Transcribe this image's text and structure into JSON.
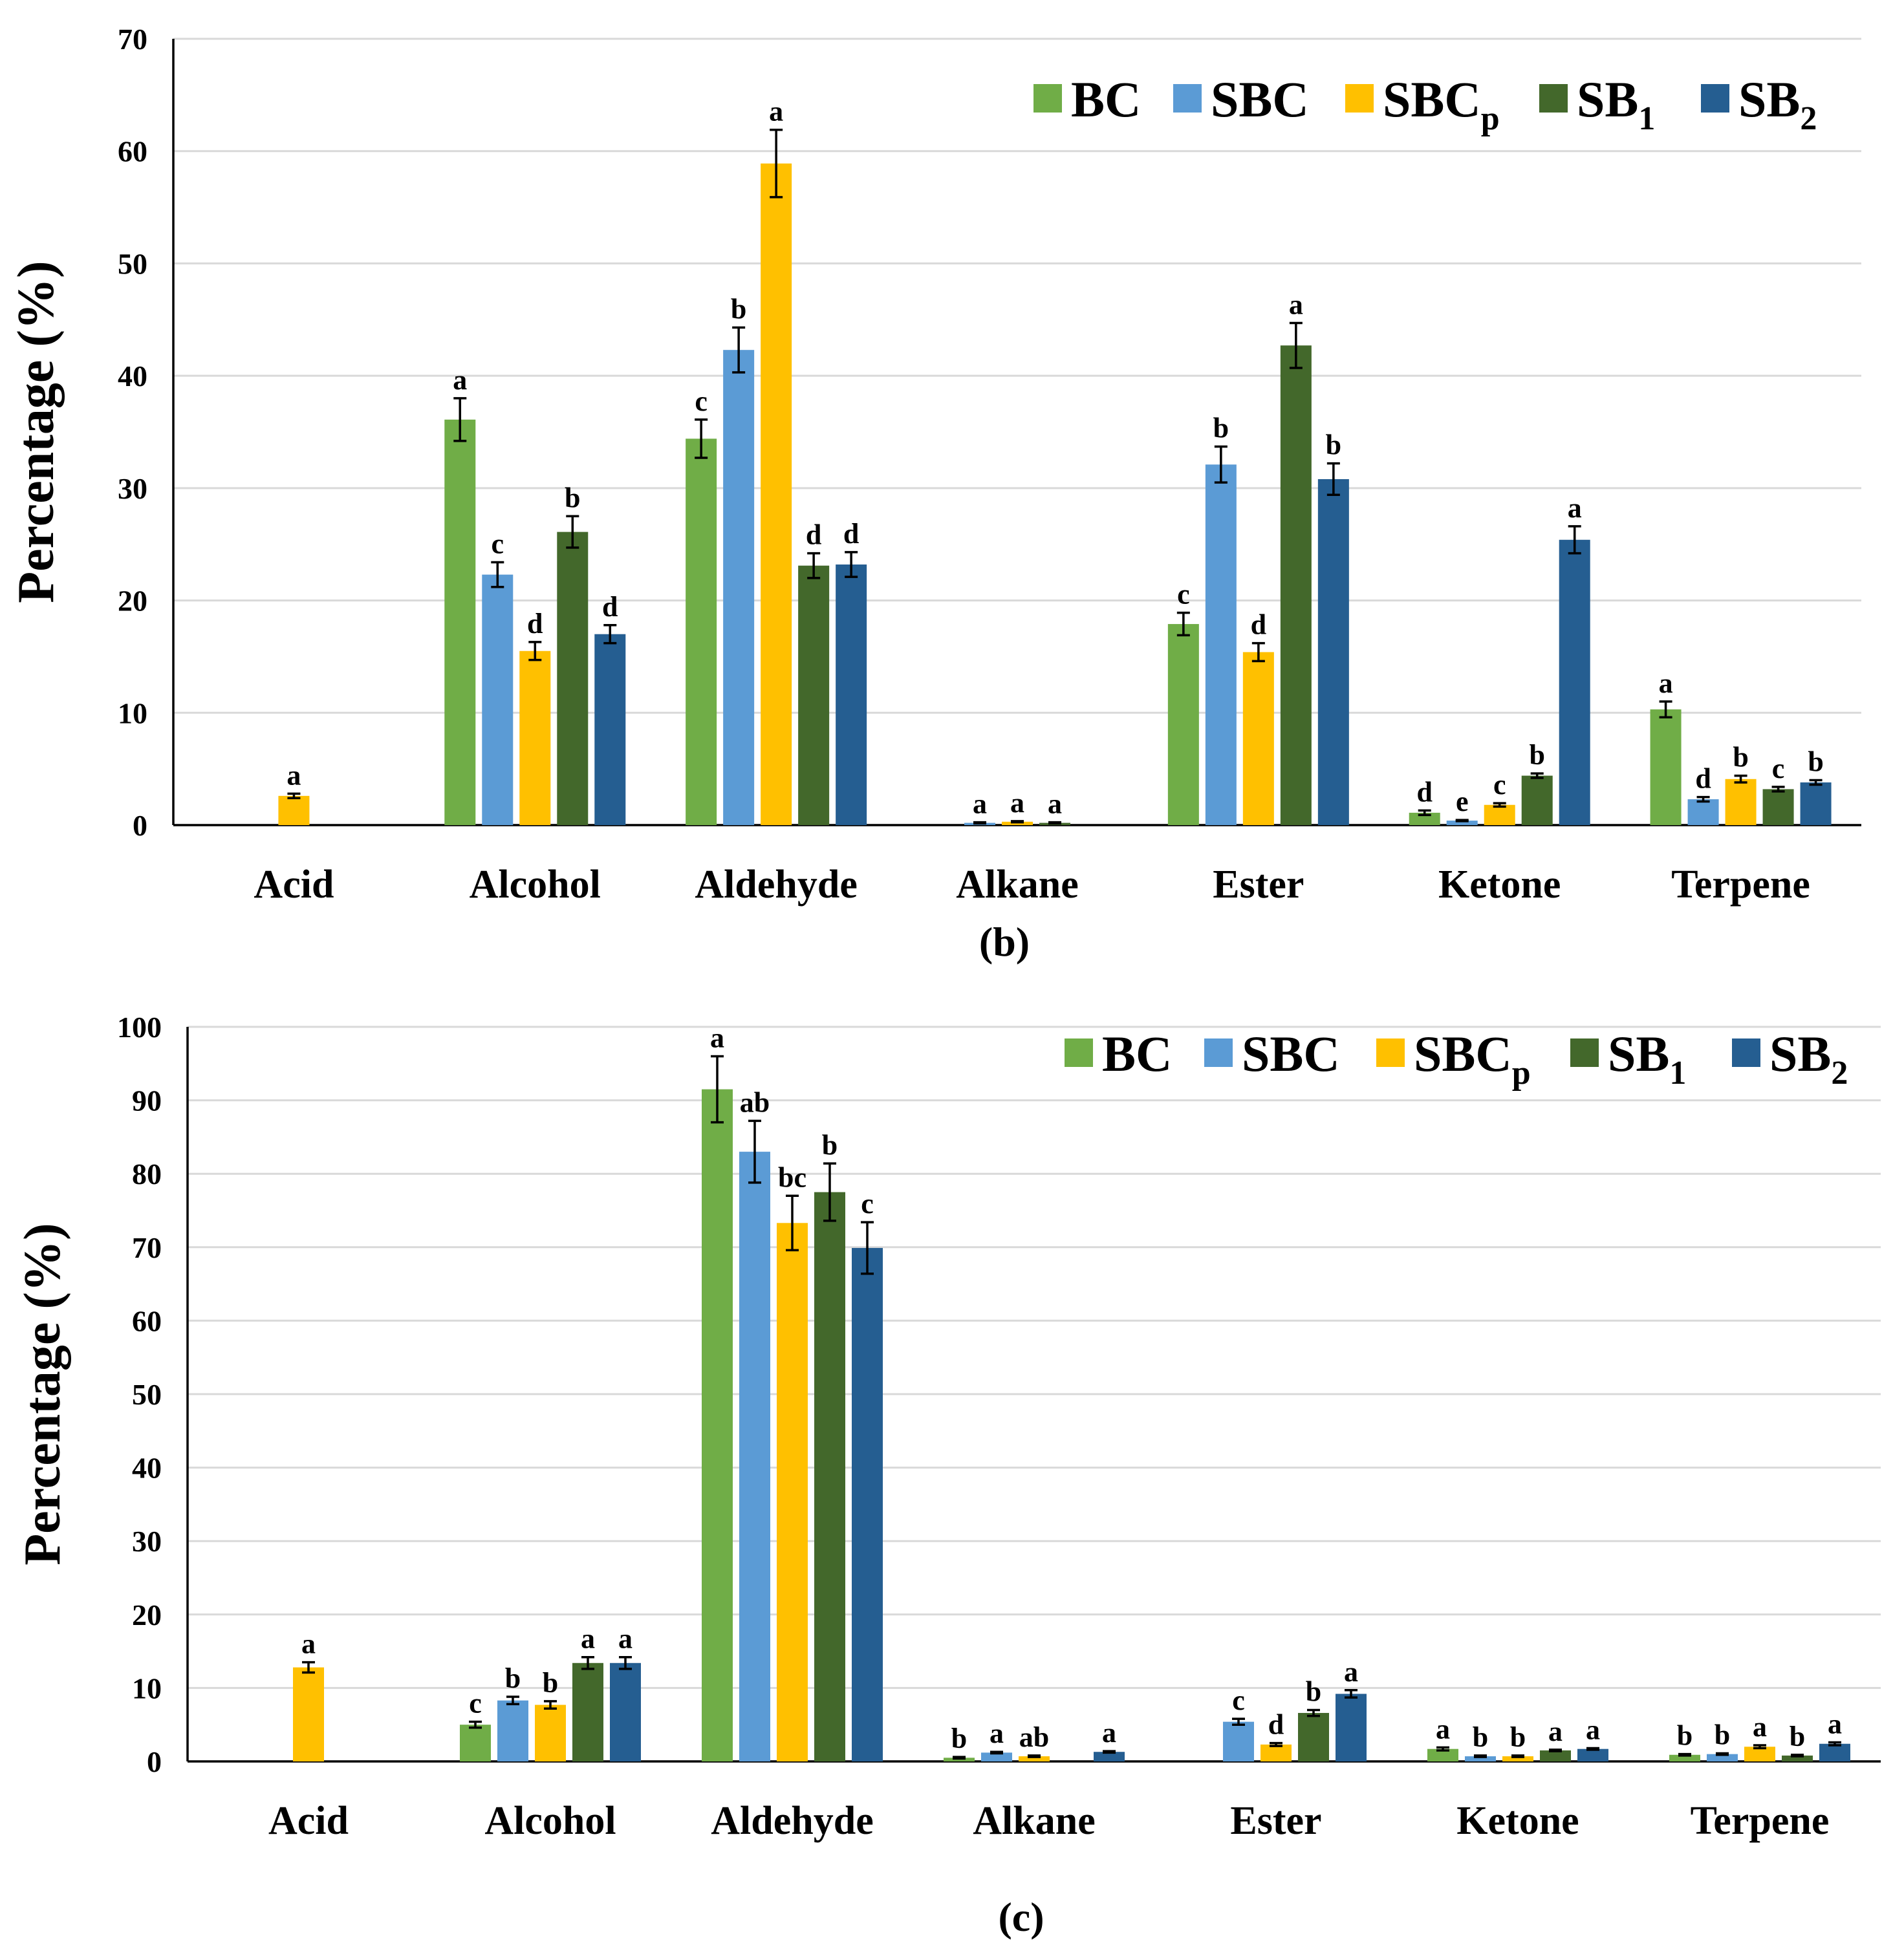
{
  "chart_data": [
    {
      "type": "bar",
      "panel": "b",
      "caption": "(b)",
      "ylabel": "Percentage (%)",
      "ylim": [
        0,
        70
      ],
      "yticks": [
        0,
        10,
        20,
        30,
        40,
        50,
        60,
        70
      ],
      "grid": true,
      "legend_position": "top-right",
      "categories": [
        "Acid",
        "Alcohol",
        "Aldehyde",
        "Alkane",
        "Ester",
        "Ketone",
        "Terpene"
      ],
      "series": [
        {
          "name": "BC",
          "base": "BC",
          "sub": "",
          "color": "#70ad47",
          "values": [
            null,
            36.1,
            34.4,
            null,
            17.9,
            1.1,
            10.3
          ],
          "errors": [
            null,
            1.9,
            1.7,
            null,
            1.0,
            0.2,
            0.7
          ],
          "labels": [
            "",
            "a",
            "c",
            "",
            "c",
            "d",
            "a"
          ]
        },
        {
          "name": "SBC",
          "base": "SBC",
          "sub": "",
          "color": "#5b9bd5",
          "values": [
            null,
            22.3,
            42.3,
            0.2,
            32.1,
            0.4,
            2.3
          ],
          "errors": [
            null,
            1.1,
            2.0,
            0.05,
            1.6,
            0.05,
            0.2
          ],
          "labels": [
            "",
            "c",
            "b",
            "a",
            "b",
            "e",
            "d"
          ]
        },
        {
          "name": "SBCp",
          "base": "SBC",
          "sub": "p",
          "color": "#ffc000",
          "values": [
            2.6,
            15.5,
            58.9,
            0.3,
            15.4,
            1.8,
            4.1
          ],
          "errors": [
            0.2,
            0.8,
            3.0,
            0.05,
            0.8,
            0.15,
            0.3
          ],
          "labels": [
            "a",
            "d",
            "a",
            "a",
            "d",
            "c",
            "b"
          ]
        },
        {
          "name": "SB1",
          "base": "SB",
          "sub": "1",
          "color": "#43682b",
          "values": [
            null,
            26.1,
            23.1,
            0.2,
            42.7,
            4.4,
            3.2
          ],
          "errors": [
            null,
            1.4,
            1.1,
            0.05,
            2.0,
            0.2,
            0.2
          ],
          "labels": [
            "",
            "b",
            "d",
            "a",
            "a",
            "b",
            "c"
          ]
        },
        {
          "name": "SB2",
          "base": "SB",
          "sub": "2",
          "color": "#255e91",
          "values": [
            null,
            17.0,
            23.2,
            null,
            30.8,
            25.4,
            3.8
          ],
          "errors": [
            null,
            0.8,
            1.1,
            null,
            1.4,
            1.2,
            0.2
          ],
          "labels": [
            "",
            "d",
            "d",
            "",
            "b",
            "a",
            "b"
          ]
        }
      ]
    },
    {
      "type": "bar",
      "panel": "c",
      "caption": "(c)",
      "ylabel": "Percentage (%)",
      "ylim": [
        0,
        100
      ],
      "yticks": [
        0,
        10,
        20,
        30,
        40,
        50,
        60,
        70,
        80,
        90,
        100
      ],
      "grid": true,
      "legend_position": "top-right",
      "categories": [
        "Acid",
        "Alcohol",
        "Aldehyde",
        "Alkane",
        "Ester",
        "Ketone",
        "Terpene"
      ],
      "series": [
        {
          "name": "BC",
          "base": "BC",
          "sub": "",
          "color": "#70ad47",
          "values": [
            null,
            5.0,
            91.5,
            0.5,
            null,
            1.7,
            0.9
          ],
          "errors": [
            null,
            0.4,
            4.5,
            0.1,
            null,
            0.2,
            0.1
          ],
          "labels": [
            "",
            "c",
            "a",
            "b",
            "",
            "a",
            "b"
          ]
        },
        {
          "name": "SBC",
          "base": "SBC",
          "sub": "",
          "color": "#5b9bd5",
          "values": [
            null,
            8.3,
            83.0,
            1.2,
            5.4,
            0.7,
            1.0
          ],
          "errors": [
            null,
            0.5,
            4.2,
            0.1,
            0.4,
            0.1,
            0.1
          ],
          "labels": [
            "",
            "b",
            "ab",
            "a",
            "c",
            "b",
            "b"
          ]
        },
        {
          "name": "SBCp",
          "base": "SBC",
          "sub": "p",
          "color": "#ffc000",
          "values": [
            12.8,
            7.7,
            73.3,
            0.7,
            2.3,
            0.7,
            2.0
          ],
          "errors": [
            0.7,
            0.5,
            3.7,
            0.1,
            0.2,
            0.1,
            0.2
          ],
          "labels": [
            "a",
            "b",
            "bc",
            "ab",
            "d",
            "b",
            "a"
          ]
        },
        {
          "name": "SB1",
          "base": "SB",
          "sub": "1",
          "color": "#43682b",
          "values": [
            null,
            13.4,
            77.5,
            null,
            6.6,
            1.5,
            0.8
          ],
          "errors": [
            null,
            0.8,
            3.9,
            null,
            0.4,
            0.1,
            0.1
          ],
          "labels": [
            "",
            "a",
            "b",
            "",
            "b",
            "a",
            "b"
          ]
        },
        {
          "name": "SB2",
          "base": "SB",
          "sub": "2",
          "color": "#255e91",
          "values": [
            null,
            13.4,
            69.9,
            1.3,
            9.2,
            1.7,
            2.4
          ],
          "errors": [
            null,
            0.8,
            3.5,
            0.1,
            0.5,
            0.1,
            0.2
          ],
          "labels": [
            "",
            "a",
            "c",
            "a",
            "a",
            "a",
            "a"
          ]
        }
      ]
    }
  ]
}
